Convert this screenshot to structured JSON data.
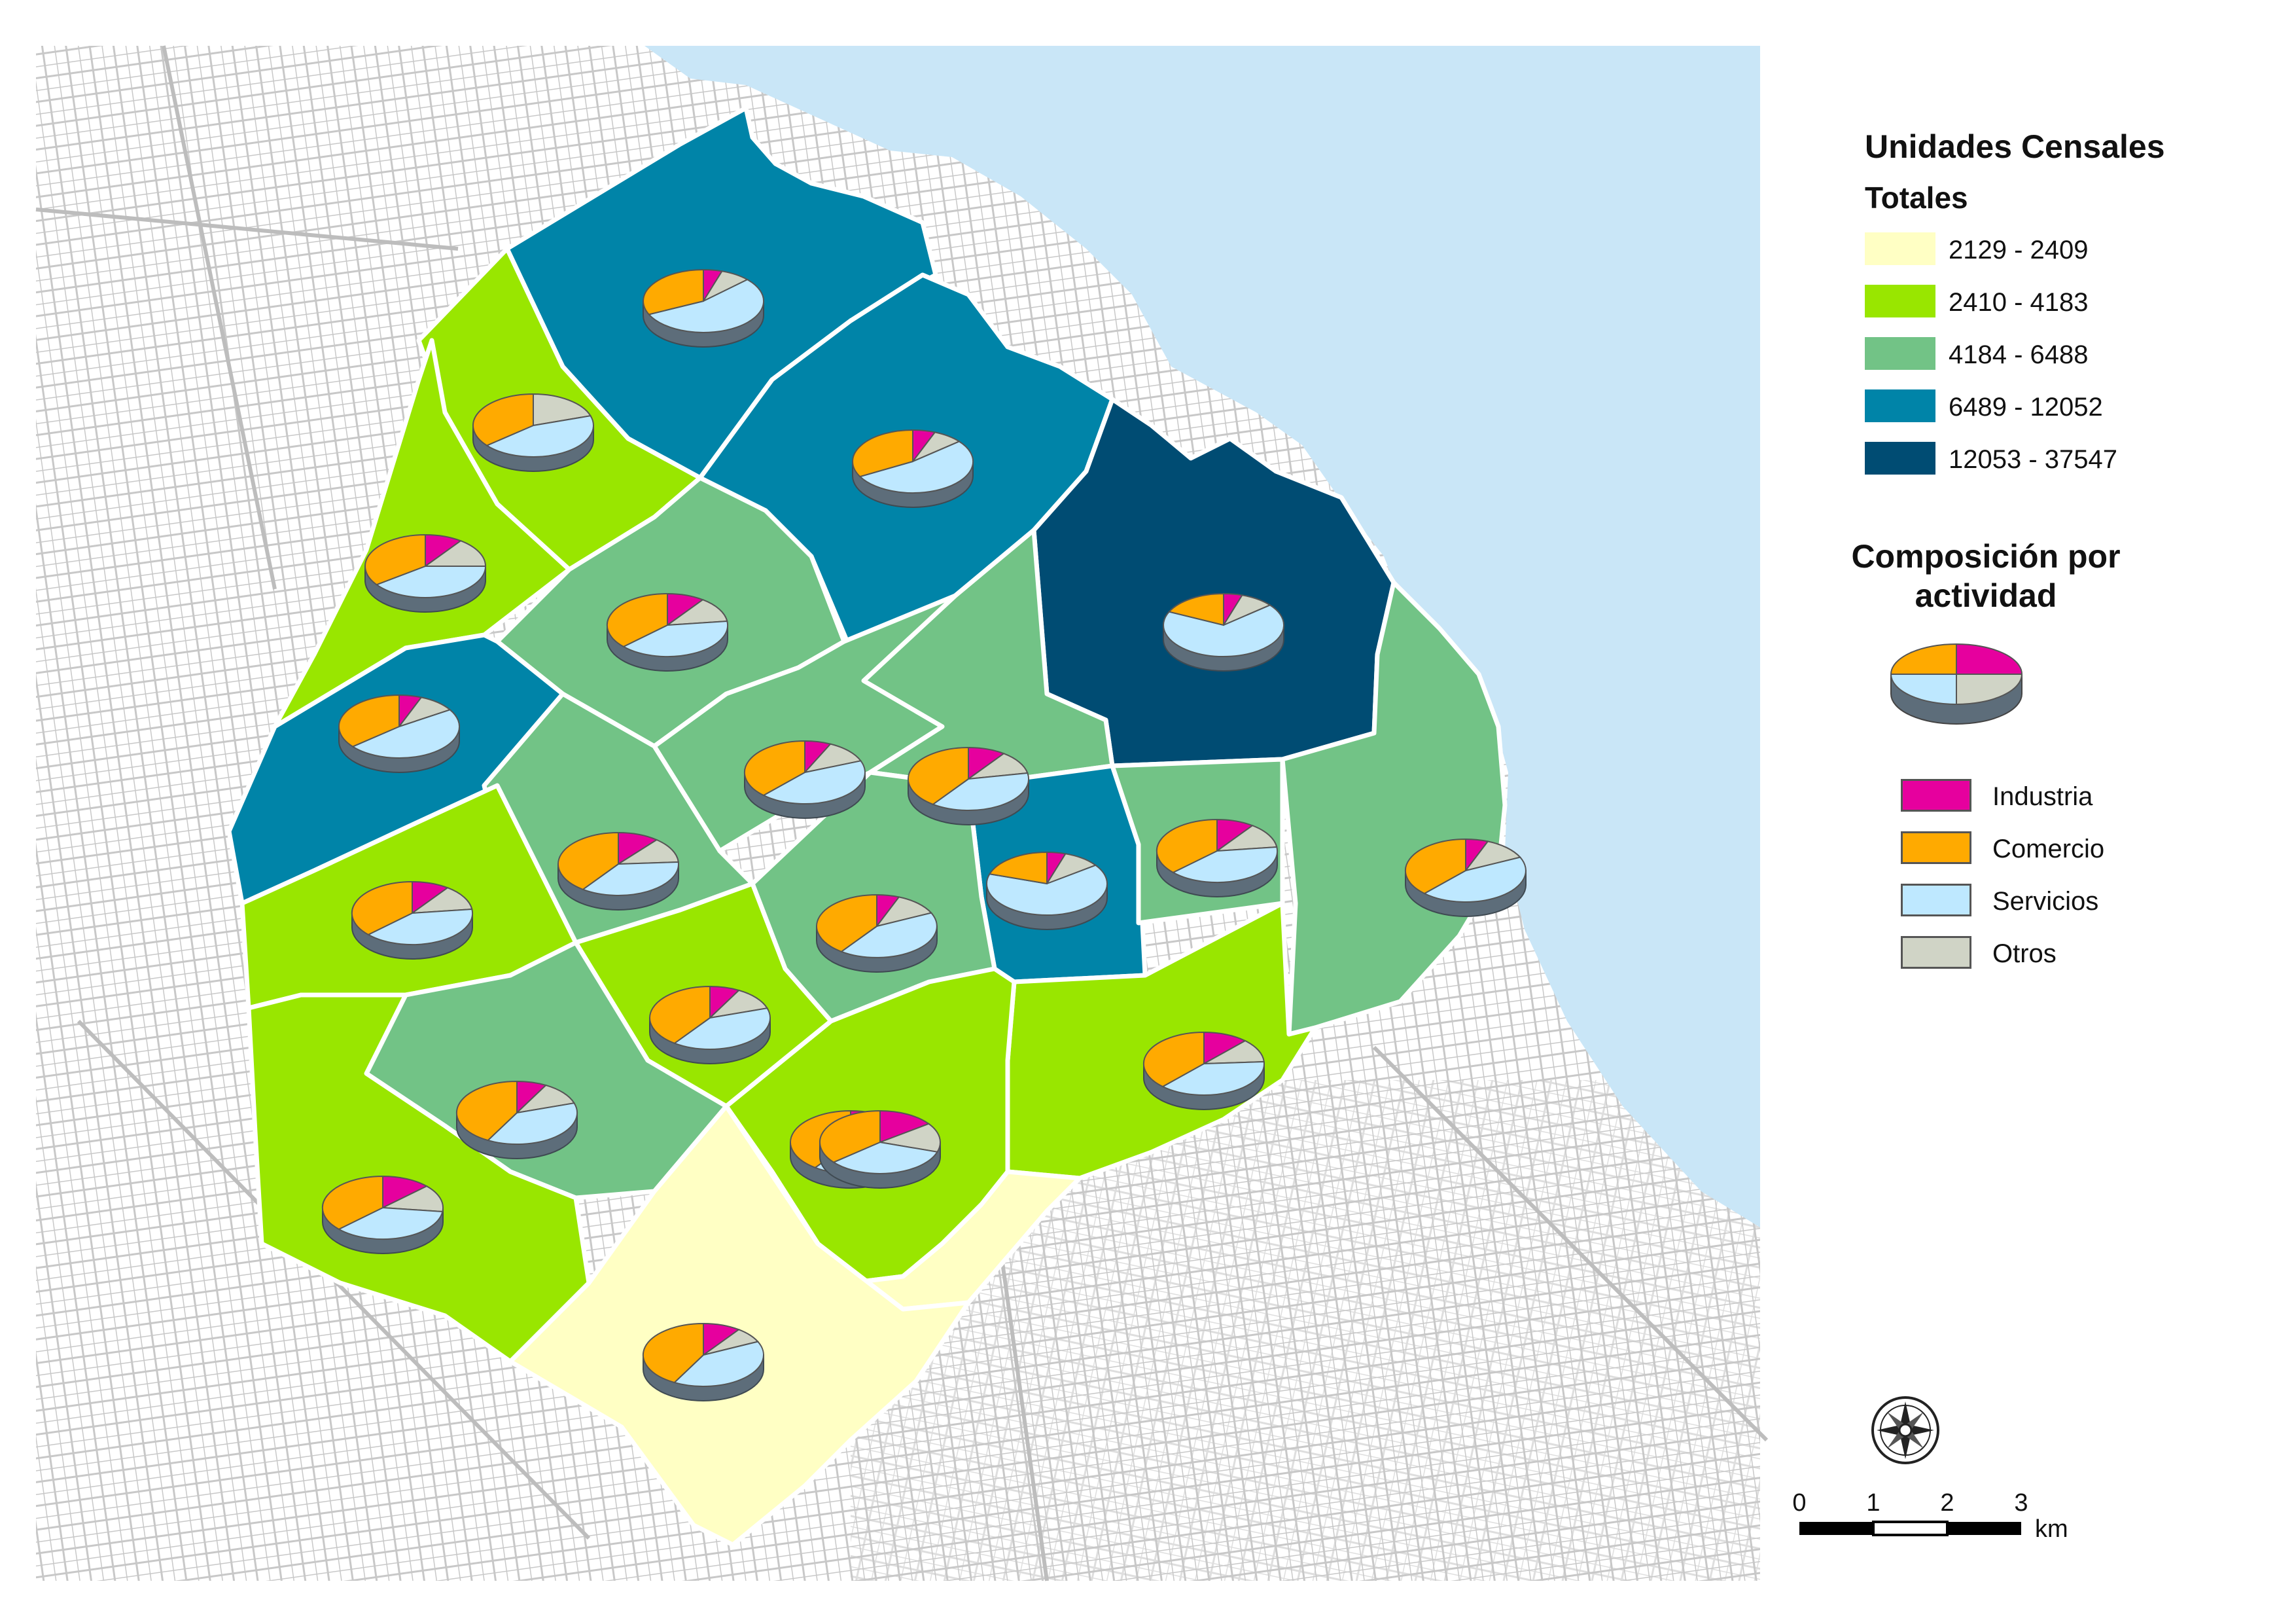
{
  "legend": {
    "title": "Unidades Censales",
    "subtitle": "Totales",
    "classes": [
      {
        "label": "2129 - 2409",
        "color": "#ffffc4"
      },
      {
        "label": "2410 - 4183",
        "color": "#99e600"
      },
      {
        "label": "4184 - 6488",
        "color": "#72c386"
      },
      {
        "label": "6489 - 12052",
        "color": "#0084a8"
      },
      {
        "label": "12053 - 37547",
        "color": "#004c73"
      }
    ],
    "composition_title_line1": "Composición por",
    "composition_title_line2": "actividad",
    "activities": [
      {
        "label": "Industria",
        "color": "#e6009e"
      },
      {
        "label": "Comercio",
        "color": "#ffaa00"
      },
      {
        "label": "Servicios",
        "color": "#bee8ff"
      },
      {
        "label": "Otros",
        "color": "#d0d4c6"
      }
    ]
  },
  "scale_bar": {
    "ticks": [
      "0",
      "1",
      "2",
      "3"
    ],
    "unit": "km"
  },
  "north_arrow": "compass-rose-icon",
  "colors": {
    "water": "#c9e6f7",
    "streets": "#c8c8c8",
    "boundary": "#ffffff"
  },
  "units": [
    {
      "id": "u01",
      "class": 3,
      "shares": [
        0.05,
        0.32,
        0.55,
        0.08
      ]
    },
    {
      "id": "u02",
      "class": 1,
      "shares": [
        0.0,
        0.36,
        0.44,
        0.2
      ]
    },
    {
      "id": "u03",
      "class": 3,
      "shares": [
        0.06,
        0.33,
        0.53,
        0.08
      ]
    },
    {
      "id": "u04",
      "class": 1,
      "shares": [
        0.1,
        0.35,
        0.4,
        0.15
      ]
    },
    {
      "id": "u05",
      "class": 2,
      "shares": [
        0.1,
        0.37,
        0.4,
        0.13
      ]
    },
    {
      "id": "u06",
      "class": 4,
      "shares": [
        0.05,
        0.18,
        0.68,
        0.09
      ]
    },
    {
      "id": "u07",
      "class": 3,
      "shares": [
        0.06,
        0.36,
        0.48,
        0.1
      ]
    },
    {
      "id": "u08",
      "class": 2,
      "shares": [
        0.07,
        0.38,
        0.43,
        0.12
      ]
    },
    {
      "id": "u09",
      "class": 2,
      "shares": [
        0.1,
        0.4,
        0.38,
        0.12
      ]
    },
    {
      "id": "u10",
      "class": 2,
      "shares": [
        0.11,
        0.4,
        0.36,
        0.13
      ]
    },
    {
      "id": "u11",
      "class": 1,
      "shares": [
        0.1,
        0.37,
        0.4,
        0.13
      ]
    },
    {
      "id": "u12",
      "class": 3,
      "shares": [
        0.05,
        0.2,
        0.65,
        0.1
      ]
    },
    {
      "id": "u13",
      "class": 2,
      "shares": [
        0.1,
        0.37,
        0.4,
        0.13
      ]
    },
    {
      "id": "u14",
      "class": 2,
      "shares": [
        0.06,
        0.4,
        0.42,
        0.12
      ]
    },
    {
      "id": "u15",
      "class": 2,
      "shares": [
        0.06,
        0.38,
        0.44,
        0.12
      ]
    },
    {
      "id": "u16",
      "class": 1,
      "shares": [
        0.08,
        0.4,
        0.4,
        0.12
      ]
    },
    {
      "id": "u17",
      "class": 2,
      "shares": [
        0.08,
        0.42,
        0.38,
        0.12
      ]
    },
    {
      "id": "u18",
      "class": 1,
      "shares": [
        0.13,
        0.37,
        0.36,
        0.14
      ]
    },
    {
      "id": "u19",
      "class": 1,
      "shares": [
        0.12,
        0.38,
        0.38,
        0.12
      ]
    },
    {
      "id": "u20",
      "class": 1,
      "shares": [
        0.12,
        0.4,
        0.36,
        0.12
      ]
    },
    {
      "id": "u21",
      "class": 0,
      "shares": [
        0.15,
        0.36,
        0.34,
        0.15
      ]
    },
    {
      "id": "u22",
      "class": 0,
      "shares": [
        0.1,
        0.42,
        0.4,
        0.08
      ]
    }
  ]
}
